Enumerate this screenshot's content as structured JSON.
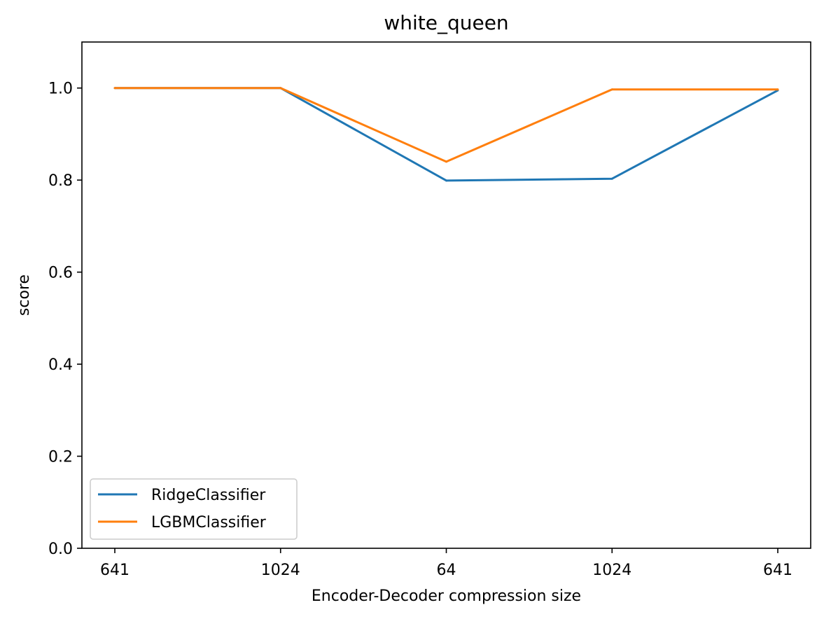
{
  "chart_data": {
    "type": "line",
    "title": "white_queen",
    "xlabel": "Encoder-Decoder compression size",
    "ylabel": "score",
    "categories": [
      "641",
      "1024",
      "64",
      "1024",
      "641"
    ],
    "ylim": [
      0.0,
      1.1
    ],
    "yticks": [
      "0.0",
      "0.2",
      "0.4",
      "0.6",
      "0.8",
      "1.0"
    ],
    "grid": false,
    "legend_position": "lower-left",
    "series": [
      {
        "name": "RidgeClassifier",
        "color": "#1f77b4",
        "values": [
          1.0,
          1.0,
          0.799,
          0.803,
          0.995
        ]
      },
      {
        "name": "LGBMClassifier",
        "color": "#ff7f0e",
        "values": [
          1.0,
          1.0,
          0.84,
          0.997,
          0.997
        ]
      }
    ]
  }
}
